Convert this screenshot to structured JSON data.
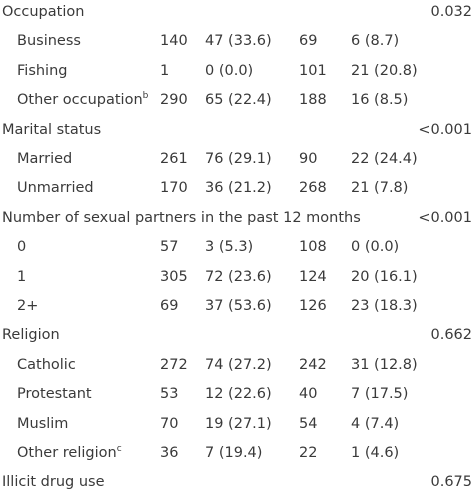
{
  "table": {
    "sections": [
      {
        "label": "Occupation",
        "p_value": "0.032",
        "rows": [
          {
            "label": "Business",
            "sup": "",
            "c1": "140",
            "c2": "47 (33.6)",
            "c3": "69",
            "c4": "6 (8.7)"
          },
          {
            "label": "Fishing",
            "sup": "",
            "c1": "1",
            "c2": "0 (0.0)",
            "c3": "101",
            "c4": "21 (20.8)"
          },
          {
            "label": "Other occupation",
            "sup": "b",
            "c1": "290",
            "c2": "65 (22.4)",
            "c3": "188",
            "c4": "16 (8.5)"
          }
        ]
      },
      {
        "label": "Marital status",
        "p_value": "<0.001",
        "rows": [
          {
            "label": "Married",
            "sup": "",
            "c1": "261",
            "c2": "76 (29.1)",
            "c3": "90",
            "c4": "22 (24.4)"
          },
          {
            "label": "Unmarried",
            "sup": "",
            "c1": "170",
            "c2": "36 (21.2)",
            "c3": "268",
            "c4": "21 (7.8)"
          }
        ]
      },
      {
        "label": "Number of sexual partners in the past 12 months",
        "p_value": "<0.001",
        "rows": [
          {
            "label": "0",
            "sup": "",
            "c1": "57",
            "c2": "3 (5.3)",
            "c3": "108",
            "c4": "0 (0.0)"
          },
          {
            "label": "1",
            "sup": "",
            "c1": "305",
            "c2": "72 (23.6)",
            "c3": "124",
            "c4": "20 (16.1)"
          },
          {
            "label": "2+",
            "sup": "",
            "c1": "69",
            "c2": "37 (53.6)",
            "c3": "126",
            "c4": "23 (18.3)"
          }
        ]
      },
      {
        "label": "Religion",
        "p_value": "0.662",
        "rows": [
          {
            "label": "Catholic",
            "sup": "",
            "c1": "272",
            "c2": "74 (27.2)",
            "c3": "242",
            "c4": "31 (12.8)"
          },
          {
            "label": "Protestant",
            "sup": "",
            "c1": "53",
            "c2": "12 (22.6)",
            "c3": "40",
            "c4": "7 (17.5)"
          },
          {
            "label": "Muslim",
            "sup": "",
            "c1": "70",
            "c2": "19 (27.1)",
            "c3": "54",
            "c4": "4 (7.4)"
          },
          {
            "label": "Other religion",
            "sup": "c",
            "c1": "36",
            "c2": "7 (19.4)",
            "c3": "22",
            "c4": "1 (4.6)"
          }
        ]
      },
      {
        "label": "Illicit drug use",
        "p_value": "0.675",
        "rows": []
      }
    ]
  }
}
